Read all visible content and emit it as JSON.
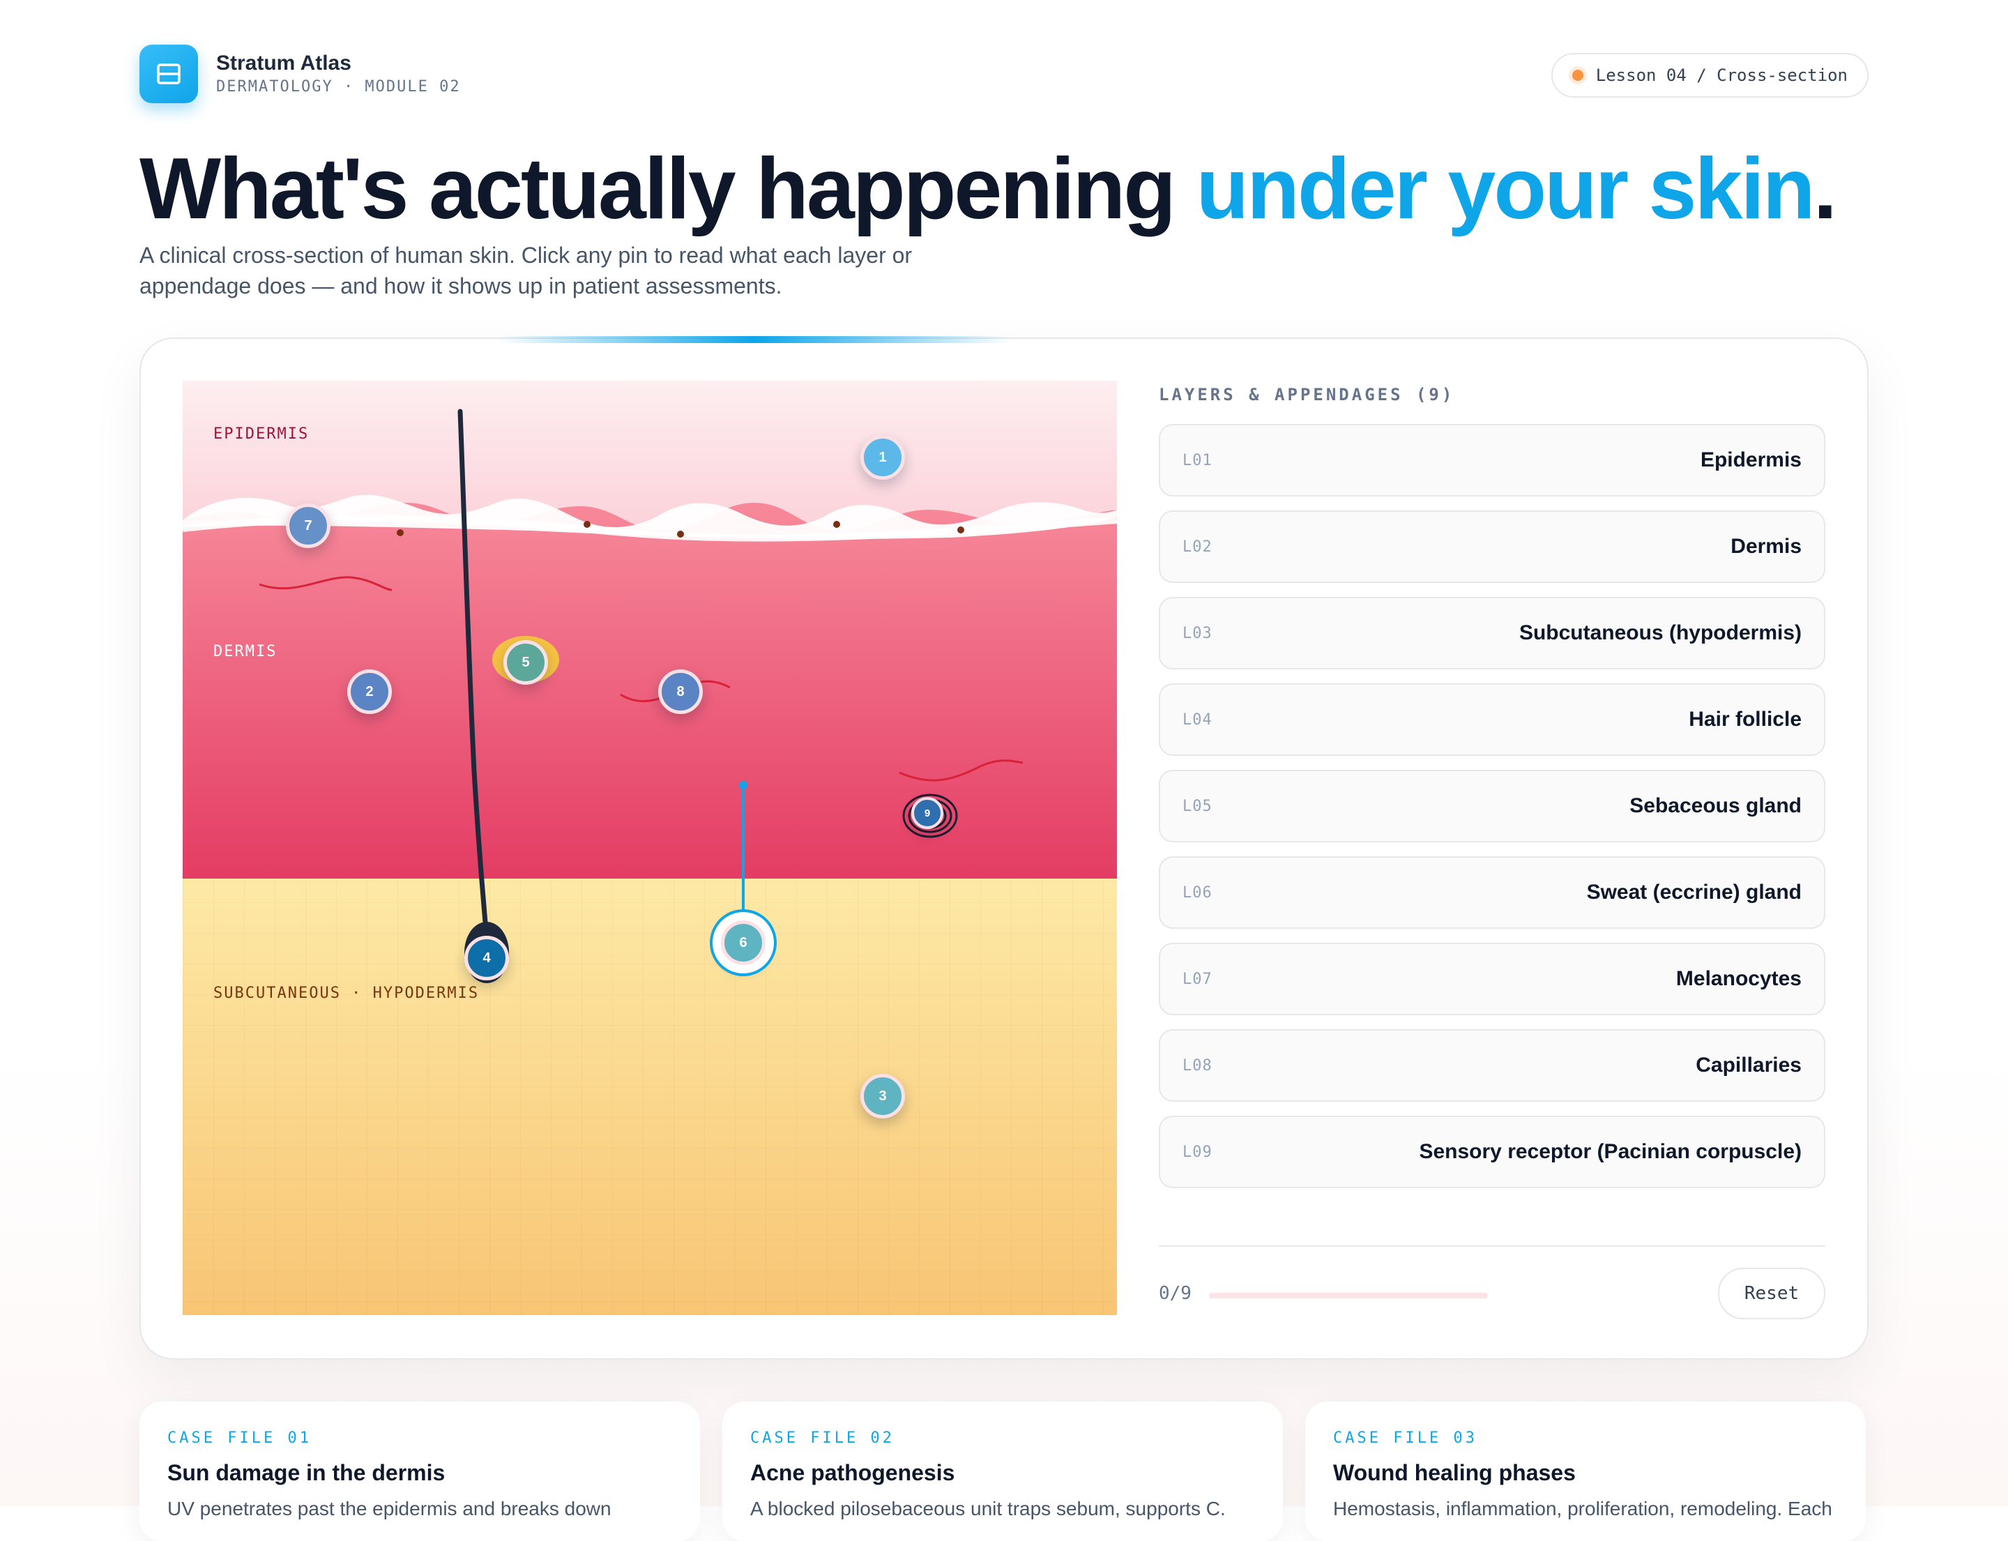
{
  "brand": {
    "name": "Stratum Atlas",
    "subtitle": "DERMATOLOGY · MODULE 02",
    "logo_icon": "book-layers-icon"
  },
  "lesson": {
    "label": "Lesson 04 / Cross-section",
    "status_color": "#fb923c"
  },
  "hero": {
    "title_main": "What's actually happening",
    "title_accent": "under your skin",
    "title_end": ".",
    "description": "A clinical cross-section of human skin. Click any pin to read what each layer or appendage does — and how it shows up in patient assessments."
  },
  "diagram": {
    "labels": {
      "epidermis": "EPIDERMIS",
      "dermis": "DERMIS",
      "subcutaneous": "SUBCUTANEOUS · HYPODERMIS"
    },
    "pins": [
      {
        "number": "1",
        "color": "#5bb8e8"
      },
      {
        "number": "2",
        "color": "#5b84c4"
      },
      {
        "number": "3",
        "color": "#5fb4c2"
      },
      {
        "number": "4",
        "color": "#0e6fa8"
      },
      {
        "number": "5",
        "color": "#5ba89a"
      },
      {
        "number": "6",
        "color": "#5fb4c2"
      },
      {
        "number": "7",
        "color": "#6691c8"
      },
      {
        "number": "8",
        "color": "#5b84c4"
      },
      {
        "number": "9",
        "color": "#2f6fb0"
      }
    ]
  },
  "panel": {
    "title": "LAYERS & APPENDAGES (9)",
    "items": [
      {
        "code": "L01",
        "name": "Epidermis"
      },
      {
        "code": "L02",
        "name": "Dermis"
      },
      {
        "code": "L03",
        "name": "Subcutaneous (hypodermis)"
      },
      {
        "code": "L04",
        "name": "Hair follicle"
      },
      {
        "code": "L05",
        "name": "Sebaceous gland"
      },
      {
        "code": "L06",
        "name": "Sweat (eccrine) gland"
      },
      {
        "code": "L07",
        "name": "Melanocytes"
      },
      {
        "code": "L08",
        "name": "Capillaries"
      },
      {
        "code": "L09",
        "name": "Sensory receptor (Pacinian corpuscle)"
      }
    ],
    "progress_text": "0/9",
    "progress_fraction": 0,
    "reset_label": "Reset"
  },
  "cases": [
    {
      "tag": "CASE FILE 01",
      "title": "Sun damage in the dermis",
      "text": "UV penetrates past the epidermis and breaks down"
    },
    {
      "tag": "CASE FILE 02",
      "title": "Acne pathogenesis",
      "text": "A blocked pilosebaceous unit traps sebum, supports C."
    },
    {
      "tag": "CASE FILE 03",
      "title": "Wound healing phases",
      "text": "Hemostasis, inflammation, proliferation, remodeling. Each"
    }
  ]
}
